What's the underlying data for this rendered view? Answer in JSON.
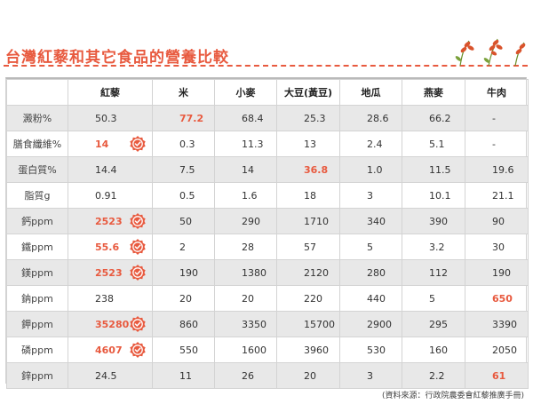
{
  "title": "台灣紅藜和其它食品的營養比較",
  "columns": [
    "紅藜",
    "米",
    "小麥",
    "大豆(黃豆)",
    "地瓜",
    "燕麥",
    "牛肉"
  ],
  "rows": [
    {
      "label": "澱粉%",
      "values": [
        "50.3",
        "77.2",
        "68.4",
        "25.3",
        "28.6",
        "66.2",
        "-"
      ],
      "red": [
        1
      ],
      "badge": false
    },
    {
      "label": "膳食纖維%",
      "values": [
        "14",
        "0.3",
        "11.3",
        "13",
        "2.4",
        "5.1",
        "-"
      ],
      "red": [
        0
      ],
      "badge": true
    },
    {
      "label": "蛋白質%",
      "values": [
        "14.4",
        "7.5",
        "14",
        "36.8",
        "1.0",
        "11.5",
        "19.6"
      ],
      "red": [
        3
      ],
      "badge": false
    },
    {
      "label": "脂質g",
      "values": [
        "0.91",
        "0.5",
        "1.6",
        "18",
        "3",
        "10.1",
        "21.1"
      ],
      "red": [],
      "badge": false
    },
    {
      "label": "鈣ppm",
      "values": [
        "2523",
        "50",
        "290",
        "1710",
        "340",
        "390",
        "90"
      ],
      "red": [
        0
      ],
      "badge": true
    },
    {
      "label": "鐵ppm",
      "values": [
        "55.6",
        "2",
        "28",
        "57",
        "5",
        "3.2",
        "30"
      ],
      "red": [
        0
      ],
      "badge": true
    },
    {
      "label": "鎂ppm",
      "values": [
        "2523",
        "190",
        "1380",
        "2120",
        "280",
        "112",
        "190"
      ],
      "red": [
        0
      ],
      "badge": true
    },
    {
      "label": "鈉ppm",
      "values": [
        "238",
        "20",
        "20",
        "220",
        "440",
        "5",
        "650"
      ],
      "red": [
        6
      ],
      "badge": false
    },
    {
      "label": "鉀ppm",
      "values": [
        "35280",
        "860",
        "3350",
        "15700",
        "2900",
        "295",
        "3390"
      ],
      "red": [
        0
      ],
      "badge": true
    },
    {
      "label": "磷ppm",
      "values": [
        "4607",
        "550",
        "1600",
        "3960",
        "530",
        "160",
        "2050"
      ],
      "red": [
        0
      ],
      "badge": true
    },
    {
      "label": "鋅ppm",
      "values": [
        "24.5",
        "11",
        "26",
        "20",
        "3",
        "2.2",
        "61"
      ],
      "red": [
        6
      ],
      "badge": false
    }
  ],
  "source": "(資料來源：行政院農委會紅藜推廣手冊)",
  "colors": {
    "accent": "#e85a3f",
    "row_gray": "#e8e8e8",
    "border": "#d3d3d3"
  },
  "icons": {
    "badge": "check-badge-icon",
    "decor": "red-quinoa-sprig-icon"
  }
}
